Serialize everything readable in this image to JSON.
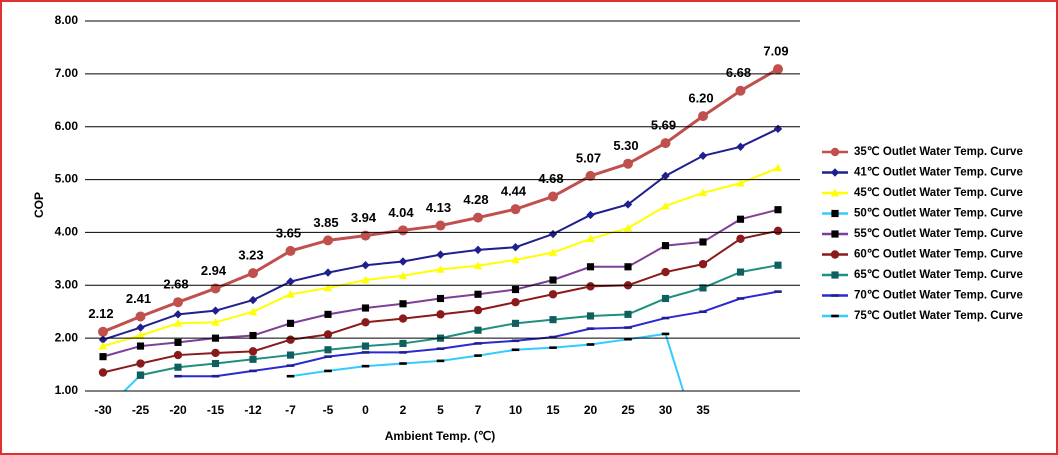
{
  "chart_data": {
    "type": "line",
    "y_label": "COP",
    "x_label": "Ambient Temp. (℃)",
    "categories": [
      "-30",
      "-25",
      "-20",
      "-15",
      "-12",
      "-7",
      "-5",
      "0",
      "2",
      "5",
      "7",
      "10",
      "15",
      "20",
      "25",
      "30",
      "35",
      null,
      null
    ],
    "ylim": [
      1,
      8
    ],
    "yticks": [
      {
        "value": 1,
        "label": "1.00"
      },
      {
        "value": 2,
        "label": "2.00"
      },
      {
        "value": 3,
        "label": "3.00"
      },
      {
        "value": 4,
        "label": "4.00"
      },
      {
        "value": 5,
        "label": "5.00"
      },
      {
        "value": 6,
        "label": "6.00"
      },
      {
        "value": 7,
        "label": "7.00"
      },
      {
        "value": 8,
        "label": "8.00"
      }
    ],
    "grid": true,
    "legend": "right",
    "series": [
      {
        "name": "35℃ Outlet Water Temp. Curve",
        "color": "#c0504d",
        "marker": "circle",
        "marker_color": "#c0504d",
        "values": [
          2.12,
          2.41,
          2.68,
          2.94,
          3.23,
          3.65,
          3.85,
          3.94,
          4.04,
          4.13,
          4.28,
          4.44,
          4.68,
          5.07,
          5.3,
          5.69,
          6.2,
          6.68,
          7.09
        ],
        "value_labels": [
          "2.12",
          "2.41",
          "2.68",
          "2.94",
          "3.23",
          "3.65",
          "3.85",
          "3.94",
          "4.04",
          "4.13",
          "4.28",
          "4.44",
          "4.68",
          "5.07",
          "5.30",
          "5.69",
          "6.20",
          "6.68",
          "7.09"
        ]
      },
      {
        "name": "41℃ Outlet Water Temp. Curve",
        "color": "#1f1f8f",
        "marker": "diamond",
        "marker_color": "#1f1f8f",
        "values": [
          1.97,
          2.2,
          2.45,
          2.52,
          2.72,
          3.07,
          3.24,
          3.38,
          3.45,
          3.58,
          3.67,
          3.72,
          3.97,
          4.33,
          4.53,
          5.07,
          5.45,
          5.62,
          5.96
        ]
      },
      {
        "name": "45℃ Outlet Water Temp. Curve",
        "color": "#ffff00",
        "marker": "triangle",
        "marker_color": "#ffff00",
        "values": [
          1.85,
          2.05,
          2.28,
          2.3,
          2.5,
          2.83,
          2.95,
          3.1,
          3.18,
          3.3,
          3.37,
          3.48,
          3.62,
          3.88,
          4.08,
          4.5,
          4.75,
          4.93,
          5.22
        ]
      },
      {
        "name": "50℃ Outlet Water Temp. Curve",
        "color": "#33ccff",
        "marker": "square",
        "marker_color": "#000000",
        "values": [
          0.6,
          1.3,
          null,
          null,
          null,
          null,
          null,
          null,
          null,
          null,
          null,
          null,
          null,
          null,
          null,
          null,
          null,
          null,
          null
        ]
      },
      {
        "name": "55℃ Outlet Water Temp. Curve",
        "color": "#7f3f98",
        "marker": "square",
        "marker_color": "#000000",
        "values": [
          1.65,
          1.85,
          1.92,
          2.0,
          2.05,
          2.28,
          2.45,
          2.57,
          2.65,
          2.75,
          2.83,
          2.92,
          3.1,
          3.35,
          3.35,
          3.75,
          3.82,
          4.25,
          4.43
        ]
      },
      {
        "name": "60℃ Outlet Water Temp. Curve",
        "color": "#8b1a1a",
        "marker": "circle",
        "marker_color": "#8b1a1a",
        "values": [
          1.35,
          1.52,
          1.68,
          1.72,
          1.75,
          1.97,
          2.07,
          2.3,
          2.37,
          2.45,
          2.53,
          2.68,
          2.83,
          2.98,
          3.0,
          3.25,
          3.4,
          3.88,
          4.03
        ]
      },
      {
        "name": "65℃ Outlet Water Temp. Curve",
        "color": "#1f8f7f",
        "marker": "square",
        "marker_color": "#0f5f5f",
        "values": [
          null,
          1.3,
          1.45,
          1.52,
          1.6,
          1.68,
          1.78,
          1.85,
          1.9,
          2.0,
          2.15,
          2.28,
          2.35,
          2.42,
          2.45,
          2.75,
          2.95,
          3.25,
          3.38
        ]
      },
      {
        "name": "70℃ Outlet Water Temp. Curve",
        "color": "#2a2ad0",
        "marker": "dash",
        "marker_color": "#1f1f8f",
        "values": [
          null,
          null,
          1.28,
          1.28,
          1.38,
          1.48,
          1.65,
          1.73,
          1.73,
          1.8,
          1.9,
          1.95,
          2.02,
          2.18,
          2.2,
          2.38,
          2.5,
          2.75,
          2.88
        ]
      },
      {
        "name": "75℃ Outlet Water Temp. Curve",
        "color": "#33ccff",
        "marker": "dash",
        "marker_color": "#000000",
        "values": [
          null,
          null,
          null,
          null,
          null,
          1.28,
          1.38,
          1.47,
          1.52,
          1.57,
          1.67,
          1.78,
          1.82,
          1.88,
          1.98,
          2.08,
          -0.2,
          null,
          null
        ]
      }
    ]
  }
}
